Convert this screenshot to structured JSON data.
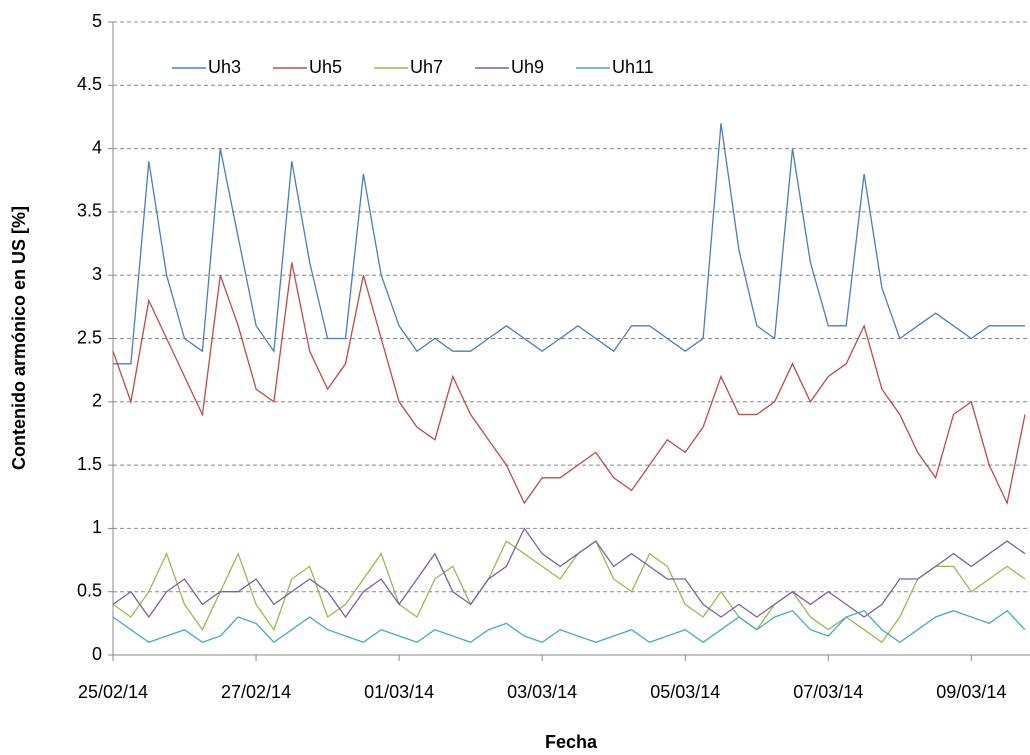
{
  "chart_data": {
    "type": "line",
    "xlabel": "Fecha",
    "ylabel": "Contenido armónico en US [%]",
    "x": [
      0,
      0.25,
      0.5,
      0.75,
      1,
      1.25,
      1.5,
      1.75,
      2,
      2.25,
      2.5,
      2.75,
      3,
      3.25,
      3.5,
      3.75,
      4,
      4.25,
      4.5,
      4.75,
      5,
      5.25,
      5.5,
      5.75,
      6,
      6.25,
      6.5,
      6.75,
      7,
      7.25,
      7.5,
      7.75,
      8,
      8.25,
      8.5,
      8.75,
      9,
      9.25,
      9.5,
      9.75,
      10,
      10.25,
      10.5,
      10.75,
      11,
      11.25,
      11.5,
      11.75,
      12,
      12.25,
      12.5,
      12.75
    ],
    "series": [
      {
        "name": "Uh3",
        "color": "#4a7ebb",
        "values": [
          2.3,
          2.3,
          3.9,
          3.0,
          2.5,
          2.4,
          4.0,
          3.3,
          2.6,
          2.4,
          3.9,
          3.1,
          2.5,
          2.5,
          3.8,
          3.0,
          2.6,
          2.4,
          2.5,
          2.4,
          2.4,
          2.5,
          2.6,
          2.5,
          2.4,
          2.5,
          2.6,
          2.5,
          2.4,
          2.6,
          2.6,
          2.5,
          2.4,
          2.5,
          4.2,
          3.2,
          2.6,
          2.5,
          4.0,
          3.1,
          2.6,
          2.6,
          3.8,
          2.9,
          2.5,
          2.6,
          2.7,
          2.6,
          2.5,
          2.6,
          2.6,
          2.6
        ]
      },
      {
        "name": "Uh5",
        "color": "#be4b48",
        "values": [
          2.4,
          2.0,
          2.8,
          2.5,
          2.2,
          1.9,
          3.0,
          2.6,
          2.1,
          2.0,
          3.1,
          2.4,
          2.1,
          2.3,
          3.0,
          2.5,
          2.0,
          1.8,
          1.7,
          2.2,
          1.9,
          1.7,
          1.5,
          1.2,
          1.4,
          1.4,
          1.5,
          1.6,
          1.4,
          1.3,
          1.5,
          1.7,
          1.6,
          1.8,
          2.2,
          1.9,
          1.9,
          2.0,
          2.3,
          2.0,
          2.2,
          2.3,
          2.6,
          2.1,
          1.9,
          1.6,
          1.4,
          1.9,
          2.0,
          1.5,
          1.2,
          1.9
        ]
      },
      {
        "name": "Uh7",
        "color": "#98b954",
        "values": [
          0.4,
          0.3,
          0.5,
          0.8,
          0.4,
          0.2,
          0.5,
          0.8,
          0.4,
          0.2,
          0.6,
          0.7,
          0.3,
          0.4,
          0.6,
          0.8,
          0.4,
          0.3,
          0.6,
          0.7,
          0.4,
          0.6,
          0.9,
          0.8,
          0.7,
          0.6,
          0.8,
          0.9,
          0.6,
          0.5,
          0.8,
          0.7,
          0.4,
          0.3,
          0.5,
          0.3,
          0.2,
          0.4,
          0.5,
          0.3,
          0.2,
          0.3,
          0.2,
          0.1,
          0.3,
          0.6,
          0.7,
          0.7,
          0.5,
          0.6,
          0.7,
          0.6
        ]
      },
      {
        "name": "Uh9",
        "color": "#7d60a0",
        "values": [
          0.4,
          0.5,
          0.3,
          0.5,
          0.6,
          0.4,
          0.5,
          0.5,
          0.6,
          0.4,
          0.5,
          0.6,
          0.5,
          0.3,
          0.5,
          0.6,
          0.4,
          0.6,
          0.8,
          0.5,
          0.4,
          0.6,
          0.7,
          1.0,
          0.8,
          0.7,
          0.8,
          0.9,
          0.7,
          0.8,
          0.7,
          0.6,
          0.6,
          0.4,
          0.3,
          0.4,
          0.3,
          0.4,
          0.5,
          0.4,
          0.5,
          0.4,
          0.3,
          0.4,
          0.6,
          0.6,
          0.7,
          0.8,
          0.7,
          0.8,
          0.9,
          0.8
        ]
      },
      {
        "name": "Uh11",
        "color": "#46aac5",
        "values": [
          0.3,
          0.2,
          0.1,
          0.15,
          0.2,
          0.1,
          0.15,
          0.3,
          0.25,
          0.1,
          0.2,
          0.3,
          0.2,
          0.15,
          0.1,
          0.2,
          0.15,
          0.1,
          0.2,
          0.15,
          0.1,
          0.2,
          0.25,
          0.15,
          0.1,
          0.2,
          0.15,
          0.1,
          0.15,
          0.2,
          0.1,
          0.15,
          0.2,
          0.1,
          0.2,
          0.3,
          0.2,
          0.3,
          0.35,
          0.2,
          0.15,
          0.3,
          0.35,
          0.2,
          0.1,
          0.2,
          0.3,
          0.35,
          0.3,
          0.25,
          0.35,
          0.2
        ]
      }
    ],
    "xlim": [
      0,
      12.82
    ],
    "xticks": [
      {
        "value": 0,
        "label": "25/02/14"
      },
      {
        "value": 2,
        "label": "27/02/14"
      },
      {
        "value": 4,
        "label": "01/03/14"
      },
      {
        "value": 6,
        "label": "03/03/14"
      },
      {
        "value": 8,
        "label": "05/03/14"
      },
      {
        "value": 10,
        "label": "07/03/14"
      },
      {
        "value": 12,
        "label": "09/03/14"
      }
    ],
    "ylim": [
      0,
      5
    ],
    "yticks": [
      0,
      {
        "value": 0.5,
        "label": "0.5"
      },
      1,
      {
        "value": 1.5,
        "label": "1.5"
      },
      2,
      {
        "value": 2.5,
        "label": "2.5"
      },
      3,
      {
        "value": 3.5,
        "label": "3.5"
      },
      4,
      {
        "value": 4.5,
        "label": "4.5"
      },
      5
    ],
    "grid": true,
    "legend": "top"
  }
}
